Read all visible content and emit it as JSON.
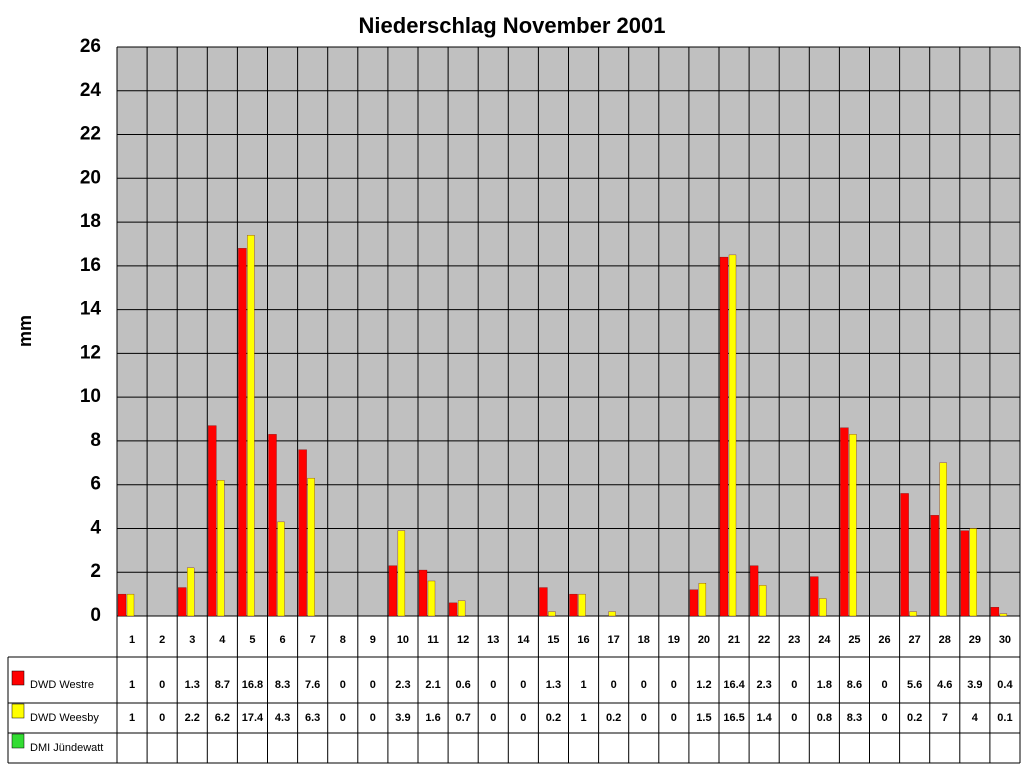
{
  "chart_data": {
    "type": "bar",
    "title": "Niederschlag November 2001",
    "y_label": "mm",
    "categories": [
      "1",
      "2",
      "3",
      "4",
      "5",
      "6",
      "7",
      "8",
      "9",
      "10",
      "11",
      "12",
      "13",
      "14",
      "15",
      "16",
      "17",
      "18",
      "19",
      "20",
      "21",
      "22",
      "23",
      "24",
      "25",
      "26",
      "27",
      "28",
      "29",
      "30"
    ],
    "series": [
      {
        "name": "DWD Westre",
        "color": "#ff0000",
        "values": [
          1,
          0,
          1.3,
          8.7,
          16.8,
          8.3,
          7.6,
          0,
          0,
          2.3,
          2.1,
          0.6,
          0,
          0,
          1.3,
          1,
          0,
          0,
          0,
          1.2,
          16.4,
          2.3,
          0,
          1.8,
          8.6,
          0,
          5.6,
          4.6,
          3.9,
          0.4
        ]
      },
      {
        "name": "DWD Weesby",
        "color": "#ffff00",
        "values": [
          1,
          0,
          2.2,
          6.2,
          17.4,
          4.3,
          6.3,
          0,
          0,
          3.9,
          1.6,
          0.7,
          0,
          0,
          0.2,
          1,
          0.2,
          0,
          0,
          1.5,
          16.5,
          1.4,
          0,
          0.8,
          8.3,
          0,
          0.2,
          7,
          4,
          0.1
        ]
      },
      {
        "name": "DMI Jündewatt",
        "color": "#33dd33",
        "values": [
          null,
          null,
          null,
          null,
          null,
          null,
          null,
          null,
          null,
          null,
          null,
          null,
          null,
          null,
          null,
          null,
          null,
          null,
          null,
          null,
          null,
          null,
          null,
          null,
          null,
          null,
          null,
          null,
          null,
          null
        ]
      }
    ],
    "ylim": [
      0,
      26
    ],
    "yticks": [
      0,
      2,
      4,
      6,
      8,
      10,
      12,
      14,
      16,
      18,
      20,
      22,
      24,
      26
    ],
    "grid": true
  }
}
